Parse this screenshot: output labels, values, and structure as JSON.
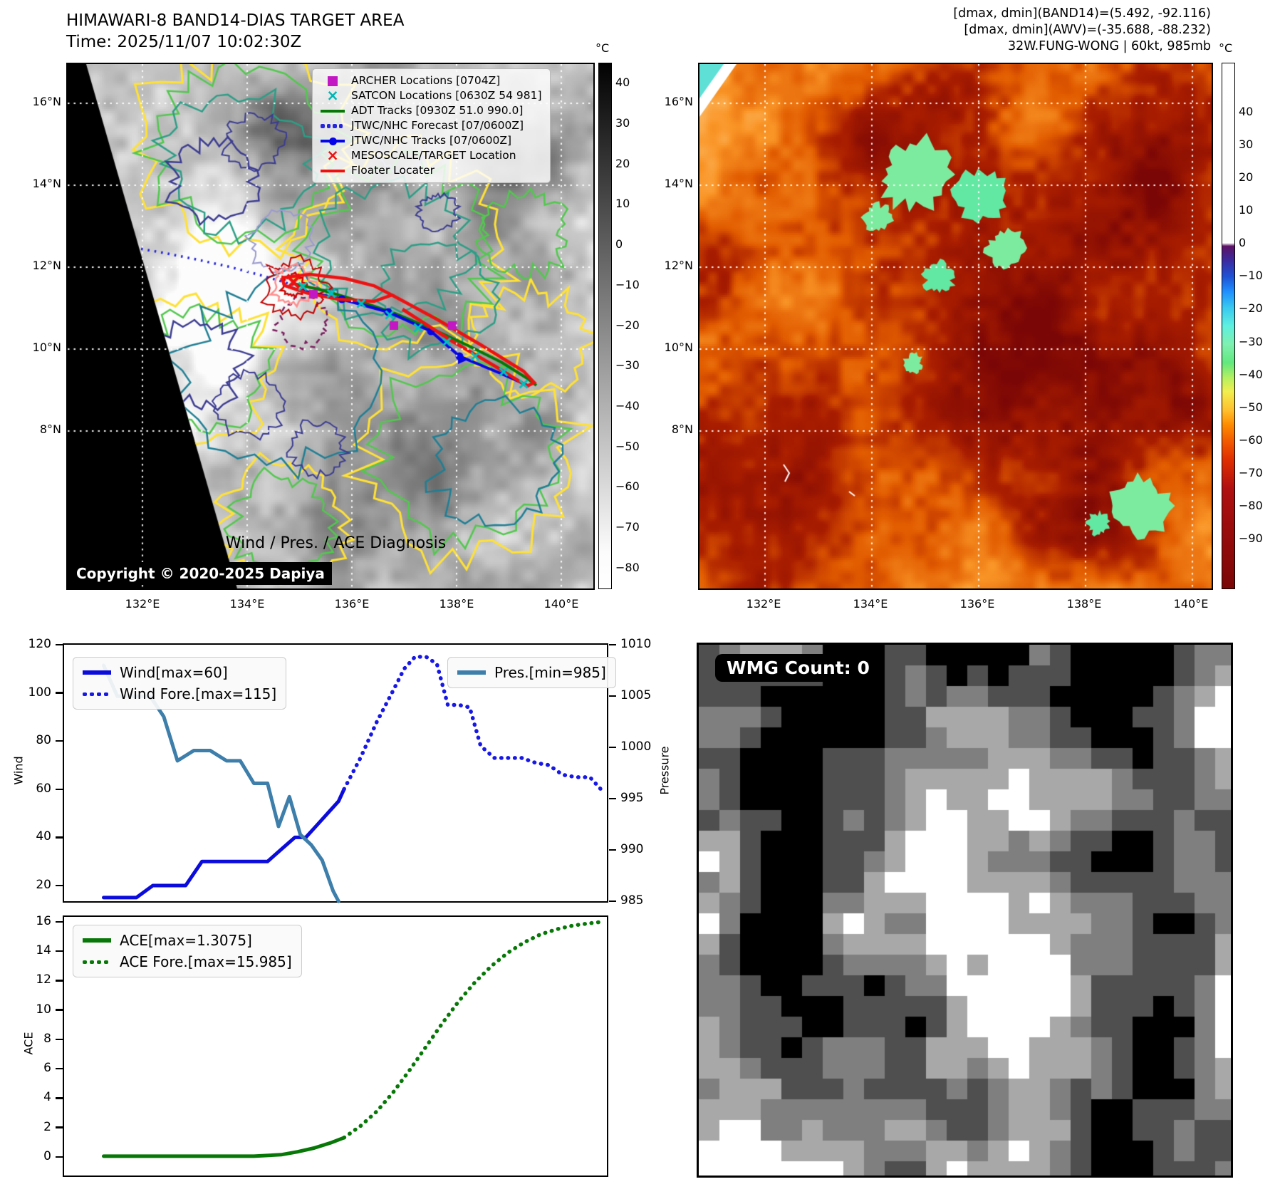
{
  "band14_panel": {
    "title": "HIMAWARI-8 BAND14-DIAS TARGET AREA",
    "time": "Time: 2025/11/07 10:02:30Z",
    "copyright": "Copyright © 2020-2025 Dapiya",
    "lat_ticks": [
      "16°N",
      "14°N",
      "12°N",
      "10°N",
      "8°N"
    ],
    "lon_ticks": [
      "132°E",
      "134°E",
      "136°E",
      "138°E",
      "140°E"
    ],
    "colorbar": {
      "unit": "°C",
      "vmax": 45,
      "vmin": -85,
      "ticks": [
        "40",
        "30",
        "20",
        "10",
        "0",
        "−10",
        "−20",
        "−30",
        "−40",
        "−50",
        "−60",
        "−70",
        "−80"
      ]
    },
    "legend": [
      {
        "label": "ARCHER Locations [0704Z]",
        "marker": "square",
        "color": "#c317c3"
      },
      {
        "label": "SATCON Locations [0630Z 54 981]",
        "marker": "x",
        "color": "#00b5b5"
      },
      {
        "label": "ADT Tracks [0930Z 51.0 990.0]",
        "marker": "line",
        "color": "#067806"
      },
      {
        "label": "JTWC/NHC Forecast [07/0600Z]",
        "marker": "dotted",
        "color": "#2525dd"
      },
      {
        "label": "JTWC/NHC Tracks [07/0600Z]",
        "marker": "linedot",
        "color": "#0505e8"
      },
      {
        "label": "MESOSCALE/TARGET Location",
        "marker": "x",
        "color": "#ee1111"
      },
      {
        "label": "Floater Locater",
        "marker": "line",
        "color": "#ee1111"
      }
    ],
    "tracks": {
      "forecast": [
        [
          0,
          242
        ],
        [
          45,
          249
        ],
        [
          90,
          257
        ],
        [
          135,
          265
        ],
        [
          180,
          274
        ],
        [
          225,
          284
        ],
        [
          270,
          296
        ],
        [
          317,
          310
        ]
      ],
      "adt": [
        [
          317,
          308
        ],
        [
          360,
          318
        ],
        [
          410,
          333
        ],
        [
          460,
          350
        ],
        [
          510,
          371
        ],
        [
          560,
          394
        ],
        [
          610,
          419
        ],
        [
          645,
          441
        ],
        [
          658,
          451
        ]
      ],
      "jtwc": [
        [
          320,
          316
        ],
        [
          385,
          330
        ],
        [
          450,
          348
        ],
        [
          510,
          375
        ],
        [
          550,
          410
        ],
        [
          610,
          435
        ],
        [
          648,
          452
        ]
      ],
      "jtwc_dots": [
        [
          385,
          330
        ],
        [
          450,
          348
        ],
        [
          510,
          375
        ],
        [
          550,
          410
        ]
      ],
      "jtwc_tri": [
        555,
        414
      ],
      "floater_loop": [
        [
          300,
          300
        ],
        [
          340,
          295
        ],
        [
          390,
          301
        ],
        [
          430,
          311
        ],
        [
          455,
          324
        ],
        [
          430,
          333
        ],
        [
          380,
          330
        ],
        [
          335,
          321
        ],
        [
          305,
          311
        ],
        [
          300,
          300
        ]
      ],
      "floater_ext": [
        [
          455,
          324
        ],
        [
          520,
          359
        ],
        [
          580,
          394
        ],
        [
          640,
          431
        ],
        [
          655,
          447
        ],
        [
          645,
          452
        ],
        [
          600,
          424
        ],
        [
          540,
          389
        ],
        [
          470,
          344
        ]
      ],
      "satcon": [
        [
          330,
          312
        ],
        [
          370,
          322
        ],
        [
          412,
          336
        ],
        [
          452,
          352
        ],
        [
          492,
          370
        ],
        [
          532,
          390
        ],
        [
          572,
          410
        ],
        [
          612,
          432
        ],
        [
          640,
          449
        ]
      ],
      "archer": [
        [
          345,
          323
        ],
        [
          458,
          367
        ],
        [
          540,
          367
        ]
      ],
      "target": [
        317,
        306
      ]
    }
  },
  "awv_panel": {
    "header": [
      "[dmax, dmin](BAND14)=(5.492, -92.116)",
      "[dmax, dmin](AWV)=(-35.688, -88.232)",
      "32W.FUNG-WONG | 60kt, 985mb"
    ],
    "lat_ticks": [
      "16°N",
      "14°N",
      "12°N",
      "10°N",
      "8°N"
    ],
    "lon_ticks": [
      "132°E",
      "134°E",
      "136°E",
      "138°E",
      "140°E"
    ],
    "colorbar": {
      "unit": "°C",
      "vmax": 55,
      "vmin": -105,
      "ticks": [
        "40",
        "30",
        "20",
        "10",
        "0",
        "−10",
        "−20",
        "−30",
        "−40",
        "−50",
        "−60",
        "−70",
        "−80",
        "−90"
      ]
    }
  },
  "wmg_panel": {
    "count_label": "WMG Count: 0"
  },
  "chart_data": [
    {
      "type": "line",
      "title": "Wind / Pres. / ACE Diagnosis",
      "ylabel_left": "Wind",
      "ylabel_right": "Pressure",
      "yticks_left": [
        20,
        40,
        60,
        80,
        100,
        120
      ],
      "yticks_right": [
        985,
        990,
        995,
        1000,
        1005,
        1010
      ],
      "ylim_left": [
        12.6,
        120.6
      ],
      "ylim_right": [
        984.8,
        1010.15
      ],
      "xlim": [
        0,
        1
      ],
      "grid": false,
      "series": [
        {
          "name": "Wind[max=60]",
          "color": "#0b0bdc",
          "style": "solid",
          "axis": "left",
          "x": [
            0.075,
            0.105,
            0.135,
            0.165,
            0.195,
            0.225,
            0.255,
            0.285,
            0.315,
            0.345,
            0.375,
            0.4,
            0.425,
            0.445,
            0.465,
            0.485,
            0.505,
            0.515
          ],
          "y": [
            15,
            15,
            15,
            20,
            20,
            20,
            30,
            30,
            30,
            30,
            30,
            35,
            40,
            40,
            45,
            50,
            55,
            60
          ]
        },
        {
          "name": "Wind Fore.[max=115]",
          "color": "#1717e6",
          "style": "dotted",
          "axis": "left",
          "x": [
            0.515,
            0.545,
            0.575,
            0.605,
            0.625,
            0.645,
            0.665,
            0.685,
            0.705,
            0.725,
            0.745,
            0.765,
            0.79,
            0.815,
            0.84,
            0.865,
            0.89,
            0.915,
            0.94,
            0.965,
            0.985
          ],
          "y": [
            60,
            73,
            88,
            101,
            110,
            115,
            115,
            112,
            95,
            95,
            94,
            78,
            73,
            73,
            73,
            71,
            70,
            66,
            65,
            65,
            60
          ]
        },
        {
          "name": "Pres.[min=985]",
          "color": "#3d7eaa",
          "style": "solid",
          "axis": "right",
          "x": [
            0.075,
            0.1,
            0.13,
            0.16,
            0.185,
            0.21,
            0.24,
            0.27,
            0.3,
            0.325,
            0.35,
            0.375,
            0.395,
            0.415,
            0.435,
            0.455,
            0.475,
            0.495,
            0.505
          ],
          "y": [
            1008,
            1005,
            1005,
            1005,
            1003,
            998.7,
            999.7,
            999.7,
            998.7,
            998.7,
            996.5,
            996.5,
            992.3,
            995.2,
            991.5,
            990.5,
            989,
            986,
            985
          ]
        }
      ]
    },
    {
      "type": "line",
      "title": "",
      "ylabel_left": "ACE",
      "yticks_left": [
        0,
        2,
        4,
        6,
        8,
        10,
        12,
        14,
        16
      ],
      "ylim_left": [
        -1.41,
        16.43
      ],
      "xlim": [
        0,
        1
      ],
      "grid": false,
      "series": [
        {
          "name": "ACE[max=1.3075]",
          "color": "#077807",
          "style": "solid",
          "axis": "left",
          "x": [
            0.075,
            0.15,
            0.25,
            0.35,
            0.4,
            0.43,
            0.46,
            0.49,
            0.515
          ],
          "y": [
            0.05,
            0.05,
            0.05,
            0.05,
            0.15,
            0.35,
            0.6,
            0.95,
            1.31
          ]
        },
        {
          "name": "ACE Fore.[max=15.985]",
          "color": "#077807",
          "style": "dotted",
          "axis": "left",
          "x": [
            0.515,
            0.545,
            0.575,
            0.605,
            0.635,
            0.665,
            0.695,
            0.725,
            0.755,
            0.785,
            0.815,
            0.845,
            0.875,
            0.905,
            0.935,
            0.965,
            0.985
          ],
          "y": [
            1.31,
            2.1,
            3.1,
            4.4,
            5.9,
            7.5,
            9.1,
            10.6,
            11.9,
            13.0,
            13.9,
            14.6,
            15.15,
            15.5,
            15.75,
            15.9,
            15.985
          ]
        }
      ]
    }
  ]
}
